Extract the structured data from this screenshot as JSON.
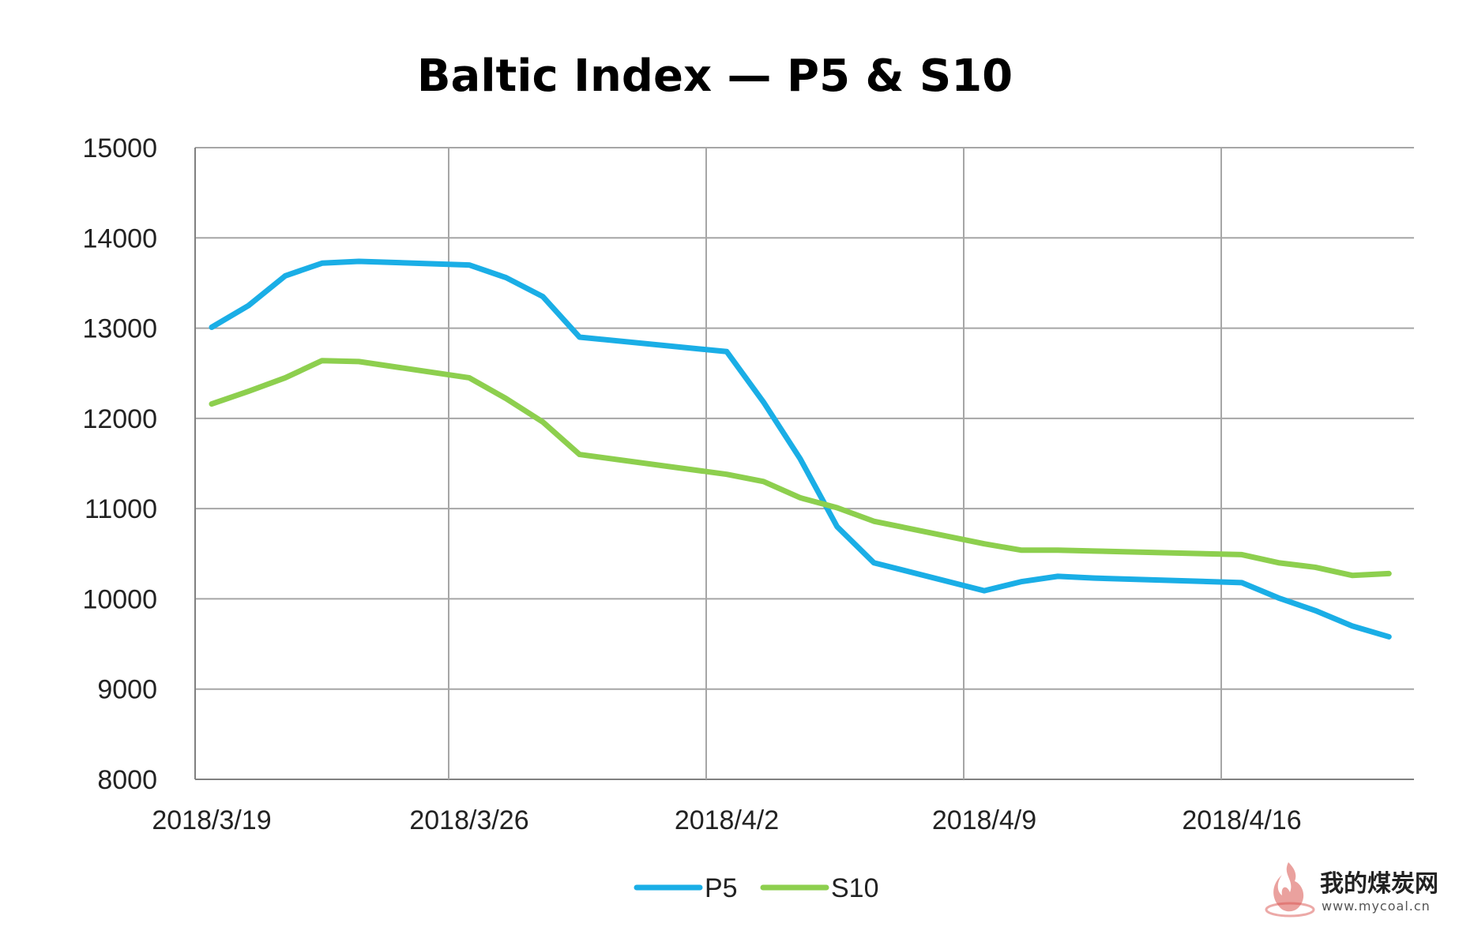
{
  "chart_data": {
    "type": "line",
    "title": "Baltic Index — P5 & S10",
    "xlabel": "",
    "ylabel": "",
    "ylim": [
      8000,
      15000
    ],
    "yticks": [
      8000,
      9000,
      10000,
      11000,
      12000,
      13000,
      14000,
      15000
    ],
    "x_tick_labels": [
      "2018/3/19",
      "2018/3/26",
      "2018/4/2",
      "2018/4/9",
      "2018/4/16"
    ],
    "x": [
      "2018/3/19",
      "2018/3/20",
      "2018/3/21",
      "2018/3/22",
      "2018/3/23",
      "2018/3/26",
      "2018/3/27",
      "2018/3/28",
      "2018/3/29",
      "2018/4/2",
      "2018/4/3",
      "2018/4/4",
      "2018/4/5",
      "2018/4/6",
      "2018/4/9",
      "2018/4/10",
      "2018/4/11",
      "2018/4/12",
      "2018/4/16",
      "2018/4/17",
      "2018/4/18",
      "2018/4/19",
      "2018/4/20"
    ],
    "grid": true,
    "legend_position": "bottom",
    "series": [
      {
        "name": "P5",
        "color": "#1aaee6",
        "values": [
          13010,
          13250,
          13580,
          13720,
          13740,
          13700,
          13560,
          13350,
          12900,
          12740,
          12180,
          11550,
          10800,
          10400,
          10090,
          10190,
          10250,
          10230,
          10180,
          10010,
          9870,
          9700,
          9580
        ]
      },
      {
        "name": "S10",
        "color": "#8dcf4e",
        "values": [
          12160,
          12300,
          12450,
          12640,
          12630,
          12450,
          12220,
          11960,
          11600,
          11380,
          11300,
          11120,
          11010,
          10860,
          10610,
          10540,
          10540,
          10530,
          10490,
          10400,
          10350,
          10260,
          10280
        ]
      }
    ]
  },
  "watermark": {
    "cn_text": "我的煤炭网",
    "url_text": "www.mycoal.cn"
  }
}
